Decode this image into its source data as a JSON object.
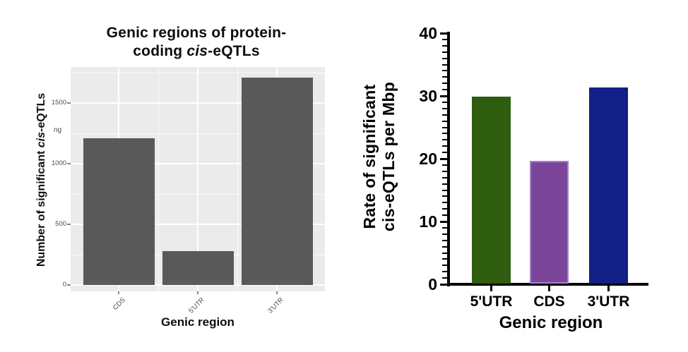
{
  "figure": {
    "background": "#FFFFFF"
  },
  "misc": {
    "stray_fragment": "ng"
  },
  "chart_data": [
    {
      "type": "bar",
      "style": "ggplot2",
      "title": "Genic regions of protein-coding cis-eQTLs",
      "title_lines": {
        "line1": "Genic regions of protein-",
        "line2_pre": "coding ",
        "line2_italic": "cis",
        "line2_post": "-eQTLs"
      },
      "xlabel": "Genic region",
      "ylabel": "Number of significant cis-eQTLs",
      "ylabel_parts": {
        "pre": "Number of significant ",
        "italic": "cis",
        "post": "-eQTLs"
      },
      "categories": [
        "CDS",
        "5'UTR",
        "3'UTR"
      ],
      "values": [
        1210,
        280,
        1710
      ],
      "ylim": [
        0,
        1750
      ],
      "yticks": [
        0,
        500,
        1000,
        1500
      ],
      "minor_gridlines": [
        250,
        750,
        1250,
        1750
      ],
      "grid": true,
      "legend": false,
      "bar_color": "#595959",
      "panel_color": "#EBEBEB",
      "grid_color": "#FFFFFF",
      "tick_label_color": "#4D4D4D",
      "tick_mark_color": "#333333"
    },
    {
      "type": "bar",
      "style": "prism",
      "title": "",
      "xlabel": "Genic region",
      "ylabel": "Rate of significant cis-eQTLs per Mbp",
      "ylabel_lines": [
        "Rate of significant",
        "cis-eQTLs per Mbp"
      ],
      "categories": [
        "5'UTR",
        "CDS",
        "3'UTR"
      ],
      "values": [
        29.8,
        19.6,
        31.2
      ],
      "ylim": [
        0,
        40
      ],
      "yticks": [
        0,
        10,
        20,
        30,
        40
      ],
      "minor_tick_step": 1,
      "grid": false,
      "legend": false,
      "bar_colors": [
        "#2F5D0F",
        "#7B4699",
        "#121F87"
      ],
      "bar_edge_colors": [
        null,
        "#A583C6",
        null
      ],
      "axis_color": "#000000"
    }
  ]
}
